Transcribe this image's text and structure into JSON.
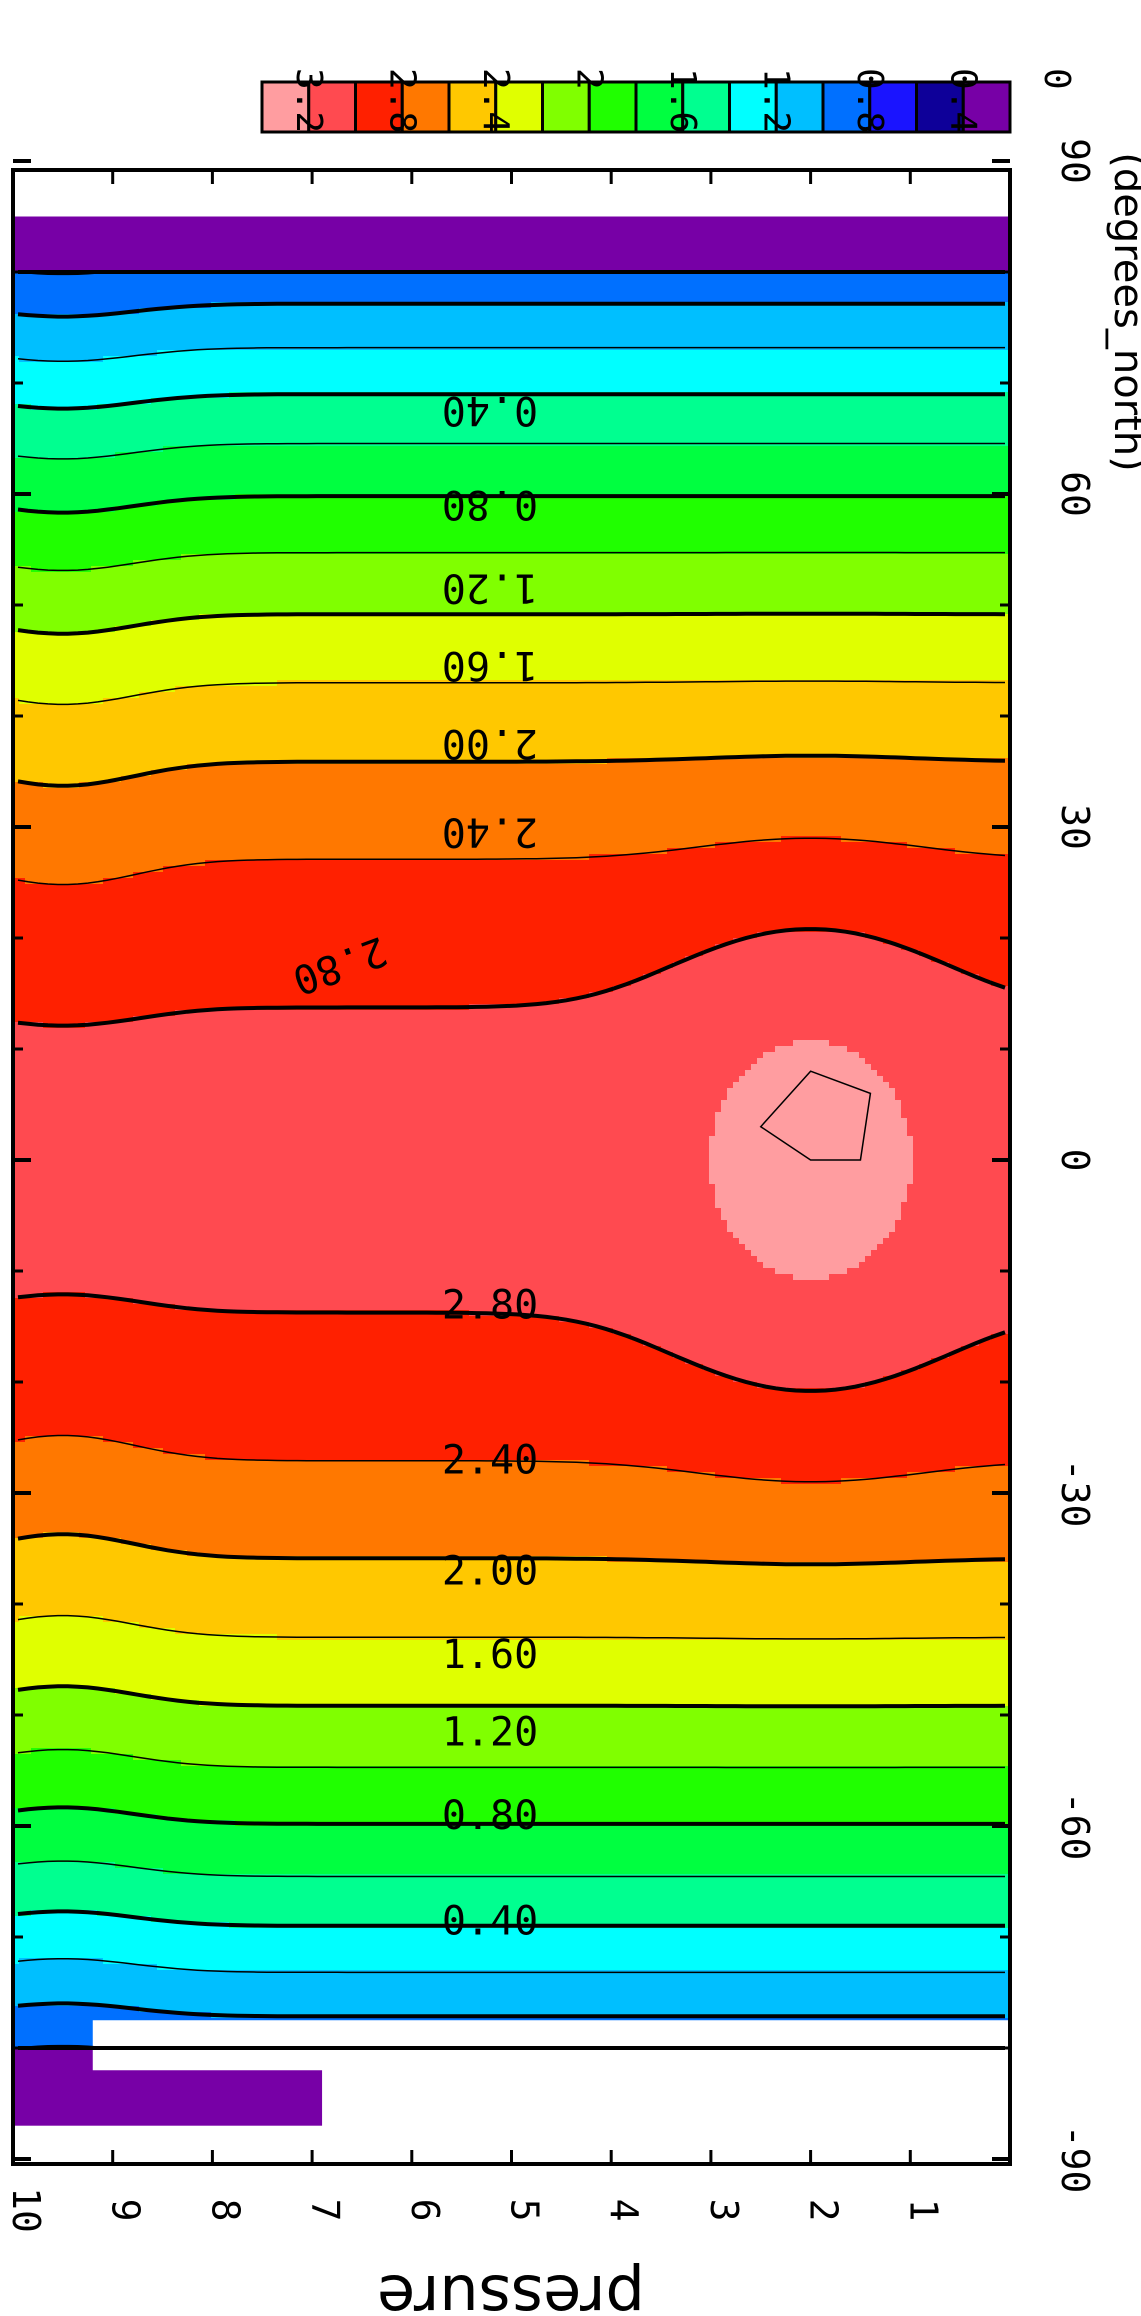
{
  "chart_data": {
    "type": "filled-contour",
    "x": {
      "label": "(degrees_north)",
      "ticks": [
        "-90",
        "-60",
        "-30",
        "0",
        "30",
        "60",
        "90"
      ],
      "tick_values": [
        -90,
        -60,
        -30,
        0,
        30,
        60,
        90
      ],
      "range": [
        -90,
        90
      ]
    },
    "y": {
      "label": "pressure",
      "ticks": [
        "1",
        "2",
        "3",
        "4",
        "5",
        "6",
        "7",
        "8",
        "9",
        "10"
      ],
      "tick_values": [
        1,
        2,
        3,
        4,
        5,
        6,
        7,
        8,
        9,
        10
      ],
      "range": [
        0,
        10
      ]
    },
    "levels": [
      0,
      0.2,
      0.4,
      0.6,
      0.8,
      1.0,
      1.2,
      1.4,
      1.6,
      1.8,
      2.0,
      2.2,
      2.4,
      2.6,
      2.8,
      3.0,
      3.2
    ],
    "colorbar": {
      "labels": [
        "3.2",
        "2.8",
        "2.4",
        "2",
        "1.6",
        "1.2",
        "0.8",
        "0.4",
        "0"
      ],
      "colors": [
        "#ff9da0",
        "#ff4a50",
        "#ff2000",
        "#ff7800",
        "#ffc800",
        "#e0ff00",
        "#80ff00",
        "#20ff00",
        "#00ff40",
        "#00ff90",
        "#00ffff",
        "#00bfff",
        "#0070ff",
        "#1a14ff",
        "#0e0099",
        "#7700a6"
      ]
    },
    "band_colors": [
      "#7700a6",
      "#0e0099",
      "#1a14ff",
      "#0070ff",
      "#00bfff",
      "#00ffff",
      "#00ff90",
      "#00ff40",
      "#20ff00",
      "#80ff00",
      "#e0ff00",
      "#ffc800",
      "#ff7800",
      "#ff2000",
      "#ff4a50",
      "#ff9da0"
    ],
    "contour_labels": [
      {
        "text": "0.40",
        "lat": 67.5
      },
      {
        "text": "0.80",
        "lat": 59
      },
      {
        "text": "1.20",
        "lat": 51.5
      },
      {
        "text": "1.60",
        "lat": 44.5
      },
      {
        "text": "2.00",
        "lat": 37.5
      },
      {
        "text": "2.40",
        "lat": 29.5
      },
      {
        "text": "2.80",
        "lat": -13
      },
      {
        "text": "2.40",
        "lat": -27
      },
      {
        "text": "2.00",
        "lat": -37
      },
      {
        "text": "1.60",
        "lat": -44.5
      },
      {
        "text": "1.20",
        "lat": -51.5
      },
      {
        "text": "0.80",
        "lat": -59
      },
      {
        "text": "0.40",
        "lat": -68.5
      }
    ],
    "peak_label": {
      "text": "2.80"
    }
  }
}
